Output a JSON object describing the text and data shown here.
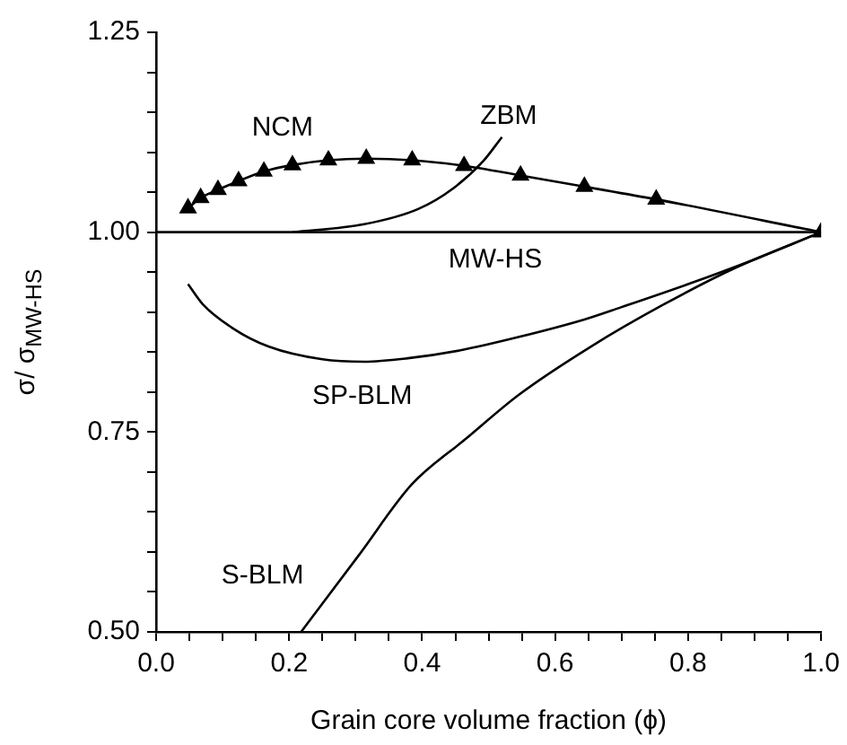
{
  "chart_data": {
    "type": "line",
    "xlabel": "Grain core volume fraction (ϕ)",
    "ylabel": "σ/ σ$_{MW-HS}$",
    "xlim": [
      0,
      1
    ],
    "ylim": [
      0.5,
      1.25
    ],
    "xticks": [
      {
        "value": 0,
        "label": "0.0"
      },
      {
        "value": 0.05,
        "label": null
      },
      {
        "value": 0.1,
        "label": null
      },
      {
        "value": 0.15,
        "label": null
      },
      {
        "value": 0.2,
        "label": "0.2"
      },
      {
        "value": 0.25,
        "label": null
      },
      {
        "value": 0.3,
        "label": null
      },
      {
        "value": 0.35,
        "label": null
      },
      {
        "value": 0.4,
        "label": "0.4"
      },
      {
        "value": 0.45,
        "label": null
      },
      {
        "value": 0.5,
        "label": null
      },
      {
        "value": 0.55,
        "label": null
      },
      {
        "value": 0.6,
        "label": "0.6"
      },
      {
        "value": 0.65,
        "label": null
      },
      {
        "value": 0.7,
        "label": null
      },
      {
        "value": 0.75,
        "label": null
      },
      {
        "value": 0.8,
        "label": "0.8"
      },
      {
        "value": 0.85,
        "label": null
      },
      {
        "value": 0.9,
        "label": null
      },
      {
        "value": 0.95,
        "label": null
      },
      {
        "value": 1,
        "label": "1.0"
      }
    ],
    "yticks": [
      {
        "value": 0.5,
        "label": "0.50"
      },
      {
        "value": 0.55,
        "label": null
      },
      {
        "value": 0.6,
        "label": null
      },
      {
        "value": 0.65,
        "label": null
      },
      {
        "value": 0.7,
        "label": null
      },
      {
        "value": 0.75,
        "label": "0.75"
      },
      {
        "value": 0.8,
        "label": null
      },
      {
        "value": 0.85,
        "label": null
      },
      {
        "value": 0.9,
        "label": null
      },
      {
        "value": 0.95,
        "label": null
      },
      {
        "value": 1,
        "label": "1.00"
      },
      {
        "value": 1.05,
        "label": null
      },
      {
        "value": 1.1,
        "label": null
      },
      {
        "value": 1.15,
        "label": null
      },
      {
        "value": 1.2,
        "label": null
      },
      {
        "value": 1.25,
        "label": "1.25"
      }
    ],
    "grid": false,
    "legend": false,
    "series": [
      {
        "name": "NCM",
        "color": "#000000",
        "marker": "triangle",
        "x": [
          0.048,
          0.067,
          0.093,
          0.124,
          0.162,
          0.205,
          0.259,
          0.316,
          0.385,
          0.463,
          0.548,
          0.644,
          0.752,
          1.0
        ],
        "values": [
          1.03,
          1.043,
          1.053,
          1.064,
          1.076,
          1.084,
          1.09,
          1.092,
          1.09,
          1.083,
          1.071,
          1.057,
          1.041,
          1.0
        ]
      },
      {
        "name": "ZBM",
        "color": "#000000",
        "marker": "none",
        "x": [
          0.205,
          0.313,
          0.394,
          0.447,
          0.492,
          0.52
        ],
        "values": [
          1.0,
          1.01,
          1.029,
          1.055,
          1.089,
          1.119
        ]
      },
      {
        "name": "MW-HS",
        "color": "#000000",
        "marker": "none",
        "x": [
          0,
          1
        ],
        "values": [
          1.0,
          1.0
        ]
      },
      {
        "name": "SP-BLM",
        "color": "#000000",
        "marker": "none",
        "x": [
          0.048,
          0.07,
          0.115,
          0.169,
          0.25,
          0.313,
          0.376,
          0.456,
          0.546,
          0.645,
          0.699,
          0.8,
          0.9,
          1.0
        ],
        "values": [
          0.935,
          0.91,
          0.88,
          0.857,
          0.841,
          0.838,
          0.842,
          0.852,
          0.869,
          0.891,
          0.906,
          0.935,
          0.966,
          1.0
        ]
      },
      {
        "name": "S-BLM",
        "color": "#000000",
        "marker": "none",
        "x": [
          0.218,
          0.304,
          0.385,
          0.465,
          0.546,
          0.654,
          0.762,
          0.87,
          1.0
        ],
        "values": [
          0.5,
          0.595,
          0.685,
          0.741,
          0.797,
          0.857,
          0.909,
          0.955,
          1.0
        ]
      }
    ]
  }
}
